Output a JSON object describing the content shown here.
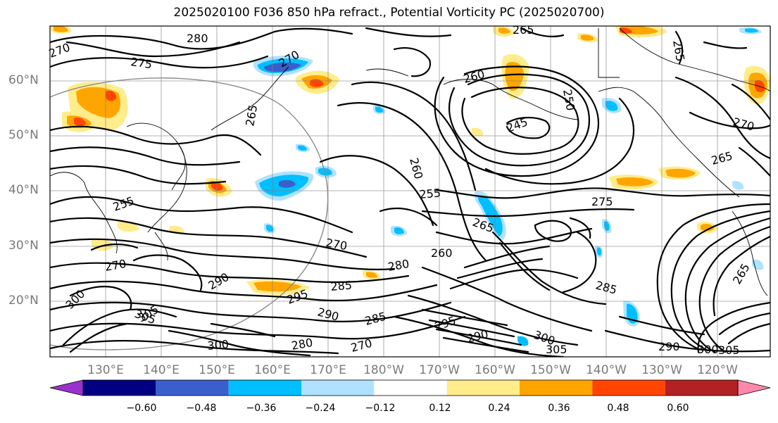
{
  "title": "2025020100 F036 850 hPa refract., Potential Vorticity PC (2025020700)",
  "lat_labels": [
    "60°N",
    "50°N",
    "40°N",
    "30°N",
    "20°N"
  ],
  "lon_labels": [
    "130°E",
    "140°E",
    "150°E",
    "160°E",
    "170°E",
    "180°W",
    "170°W",
    "160°W",
    "150°W",
    "140°W",
    "130°W",
    "120°W"
  ],
  "colorbar": {
    "ticks": [
      "−0.60",
      "−0.48",
      "−0.36",
      "−0.24",
      "−0.12",
      "0.12",
      "0.24",
      "0.36",
      "0.48",
      "0.60"
    ],
    "colors": [
      "#9932cc",
      "#000080",
      "#3a5fcd",
      "#00bfff",
      "#b0e2ff",
      "#ffffff",
      "#ffec8b",
      "#ffa500",
      "#ff4500",
      "#b22222",
      "#ff88aa"
    ]
  },
  "contour_labels": [
    "280",
    "275",
    "270",
    "270",
    "265",
    "265",
    "260",
    "245",
    "250",
    "270",
    "265",
    "265",
    "255",
    "260",
    "265",
    "275",
    "270",
    "280",
    "285",
    "290",
    "295",
    "285",
    "300",
    "305",
    "305",
    "300",
    "290",
    "300",
    "270",
    "255",
    "260",
    "265",
    "285",
    "290",
    "280",
    "270",
    "295",
    "305",
    "300",
    "290",
    "305"
  ]
}
